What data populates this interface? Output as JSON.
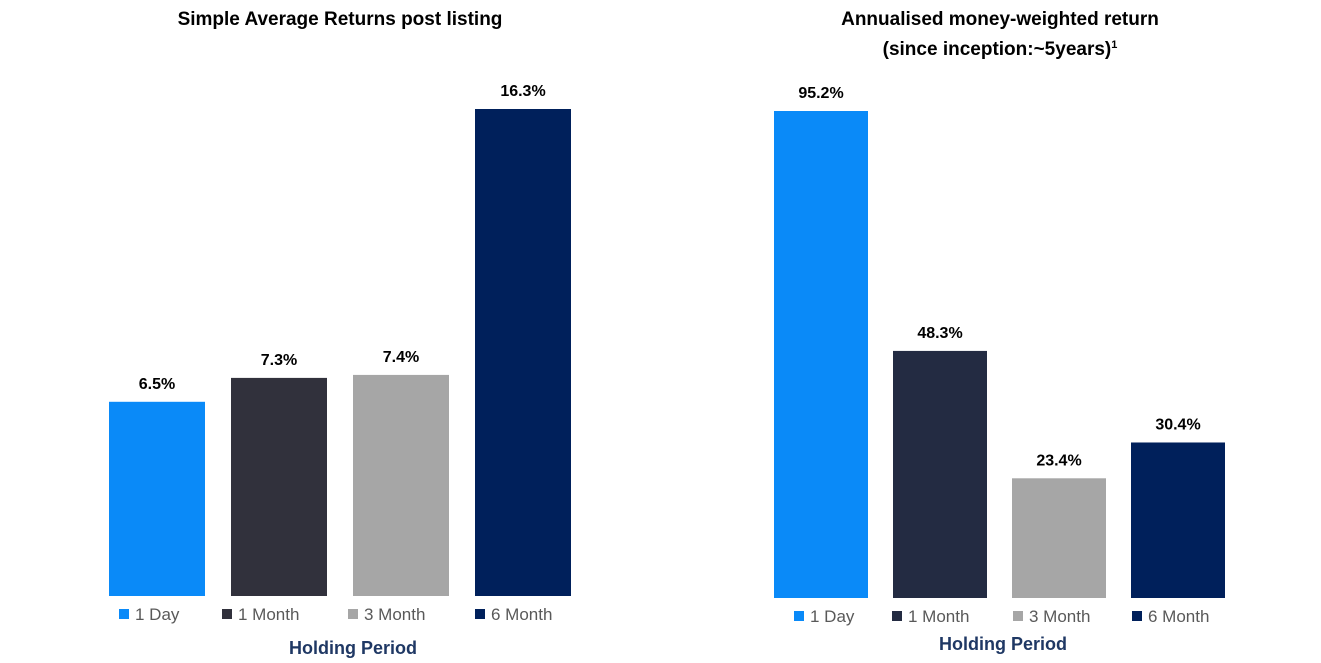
{
  "chart_data": [
    {
      "type": "bar",
      "title": "Simple Average Returns post listing",
      "title_line2": "",
      "title_sup": "",
      "xlabel": "Holding Period",
      "categories": [
        "1 Day",
        "1 Month",
        "3 Month",
        "6 Month"
      ],
      "values": [
        6.5,
        7.3,
        7.4,
        16.3
      ],
      "value_labels": [
        "6.5%",
        "7.3%",
        "7.4%",
        "16.3%"
      ],
      "colors": [
        "#0a8af8",
        "#31313c",
        "#a6a6a6",
        "#00205b"
      ],
      "ylim": [
        0,
        16.3
      ],
      "legend": "bottom",
      "grid": false
    },
    {
      "type": "bar",
      "title": "Annualised money-weighted return",
      "title_line2": "(since inception:~5years)",
      "title_sup": "1",
      "xlabel": "Holding Period",
      "categories": [
        "1 Day",
        "1 Month",
        "3 Month",
        "6 Month"
      ],
      "values": [
        95.2,
        48.3,
        23.4,
        30.4
      ],
      "value_labels": [
        "95.2%",
        "48.3%",
        "23.4%",
        "30.4%"
      ],
      "colors": [
        "#0a8af8",
        "#232b42",
        "#a6a6a6",
        "#00205b"
      ],
      "ylim": [
        0,
        95.2
      ],
      "legend": "bottom",
      "grid": false
    }
  ]
}
